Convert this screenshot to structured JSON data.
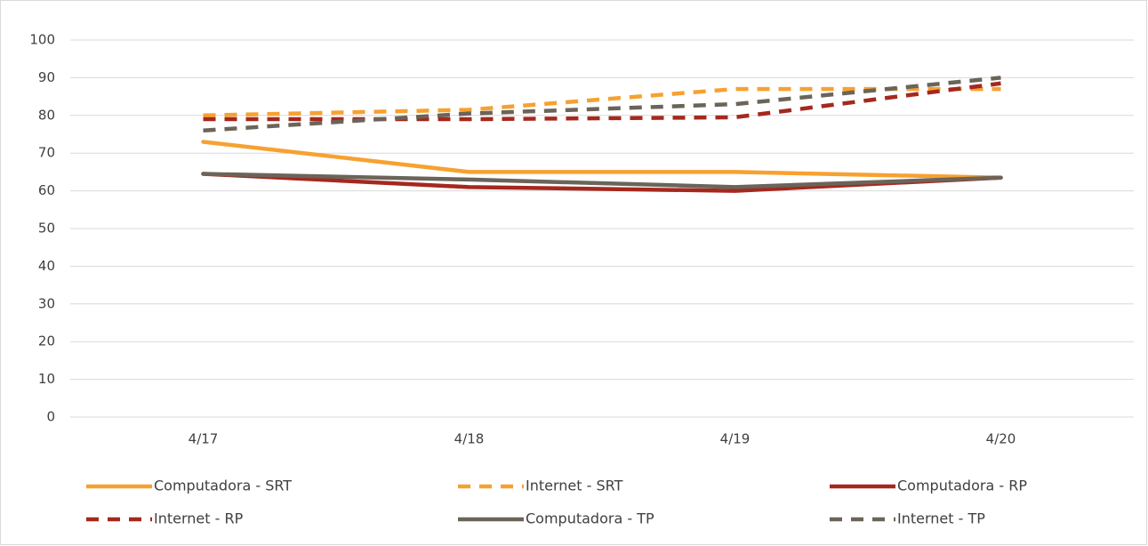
{
  "chart_data": {
    "type": "line",
    "categories": [
      "4/17",
      "4/18",
      "4/19",
      "4/20"
    ],
    "series": [
      {
        "name": "Computadora - SRT",
        "color": "#f7a130",
        "dash": false,
        "values": [
          73,
          65,
          65,
          63.5
        ]
      },
      {
        "name": "Internet - SRT",
        "color": "#f7a130",
        "dash": true,
        "values": [
          80,
          81.5,
          87,
          87
        ]
      },
      {
        "name": "Computadora - RP",
        "color": "#a5281e",
        "dash": false,
        "values": [
          64.5,
          61,
          60,
          63.5
        ]
      },
      {
        "name": "Internet - RP",
        "color": "#a5281e",
        "dash": true,
        "values": [
          79,
          79,
          79.5,
          88.5
        ]
      },
      {
        "name": "Computadora - TP",
        "color": "#6b6459",
        "dash": false,
        "values": [
          64.5,
          63,
          61,
          63.5
        ]
      },
      {
        "name": "Internet - TP",
        "color": "#6b6459",
        "dash": true,
        "values": [
          76,
          80.5,
          83,
          90
        ]
      }
    ],
    "ylim": [
      0,
      100
    ],
    "yticks": [
      0,
      10,
      20,
      30,
      40,
      50,
      60,
      70,
      80,
      90,
      100
    ],
    "grid": true,
    "legend": "bottom"
  }
}
